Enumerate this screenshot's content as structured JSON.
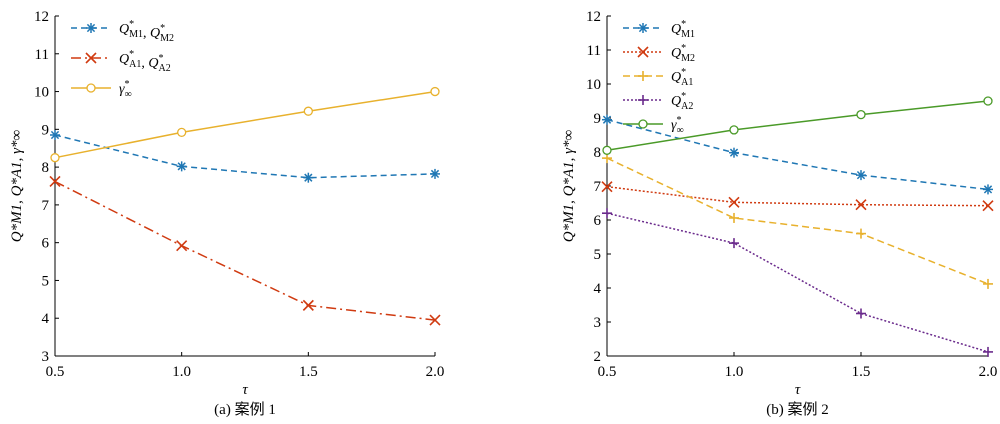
{
  "chart_data": [
    {
      "type": "line",
      "caption": "(a) 案例 1",
      "xlabel": "τ",
      "ylabel": "Q*M1, Q*A1, γ*∞",
      "x": [
        0.5,
        1.0,
        1.5,
        2.0
      ],
      "xticks": [
        "0.5",
        "1.0",
        "1.5",
        "2.0"
      ],
      "xlim": [
        0.5,
        2.0
      ],
      "ylim": [
        3,
        12
      ],
      "yticks": [
        3,
        4,
        5,
        6,
        7,
        8,
        9,
        10,
        11,
        12
      ],
      "grid": false,
      "legend_position": "top-left",
      "series": [
        {
          "name": "Q*M1, Q*M2",
          "values": [
            8.85,
            8.02,
            7.72,
            7.82
          ],
          "color": "#1f77b4",
          "marker": "star",
          "dash": "6,4"
        },
        {
          "name": "Q*A1, Q*A2",
          "values": [
            7.62,
            5.92,
            4.34,
            3.95
          ],
          "color": "#d03a10",
          "marker": "x",
          "dash": "10,4,2,4"
        },
        {
          "name": "γ*∞",
          "values": [
            8.25,
            8.92,
            9.48,
            10.0
          ],
          "color": "#e8b12d",
          "marker": "circle",
          "dash": ""
        }
      ]
    },
    {
      "type": "line",
      "caption": "(b) 案例 2",
      "xlabel": "τ",
      "ylabel": "Q*M1, Q*A1, γ*∞",
      "x": [
        0.5,
        1.0,
        1.5,
        2.0
      ],
      "xticks": [
        "0.5",
        "1.0",
        "1.5",
        "2.0"
      ],
      "xlim": [
        0.5,
        2.0
      ],
      "ylim": [
        2,
        12
      ],
      "yticks": [
        2,
        3,
        4,
        5,
        6,
        7,
        8,
        9,
        10,
        11,
        12
      ],
      "grid": false,
      "legend_position": "top-left",
      "series": [
        {
          "name": "Q*M1",
          "values": [
            8.95,
            7.98,
            7.32,
            6.9
          ],
          "color": "#1f77b4",
          "marker": "star",
          "dash": "6,4"
        },
        {
          "name": "Q*M2",
          "values": [
            6.98,
            6.52,
            6.45,
            6.42
          ],
          "color": "#d03a10",
          "marker": "x",
          "dash": "2,2"
        },
        {
          "name": "Q*A1",
          "values": [
            7.82,
            6.06,
            5.6,
            4.12
          ],
          "color": "#e8b12d",
          "marker": "plus",
          "dash": "7,4"
        },
        {
          "name": "Q*A2",
          "values": [
            6.2,
            5.32,
            3.25,
            2.12
          ],
          "color": "#6a2a8c",
          "marker": "plus",
          "dash": "2,2"
        },
        {
          "name": "γ*∞",
          "values": [
            8.05,
            8.65,
            9.1,
            9.5
          ],
          "color": "#4a9a28",
          "marker": "circle",
          "dash": ""
        }
      ]
    }
  ]
}
